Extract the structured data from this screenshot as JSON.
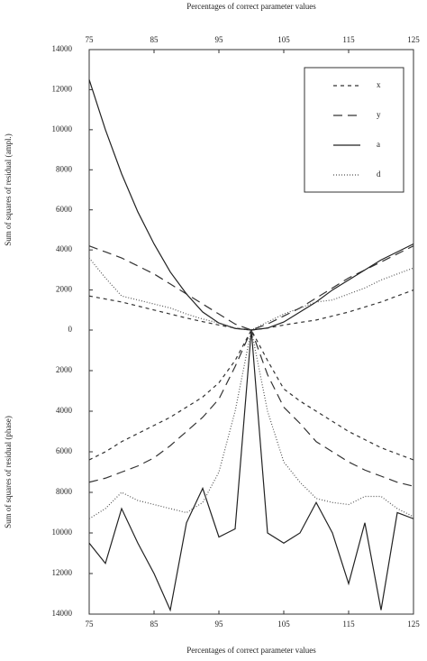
{
  "chart_data": [
    {
      "type": "line",
      "x_label": "Percentages of correct parameter values",
      "y_label": "Sum of squares of residual (ampl.)",
      "x_axis_side": "top",
      "x": [
        75,
        77.5,
        80,
        82.5,
        85,
        87.5,
        90,
        92.5,
        95,
        97.5,
        100,
        102.5,
        105,
        107.5,
        110,
        112.5,
        115,
        117.5,
        120,
        122.5,
        125
      ],
      "xlim": [
        75,
        125
      ],
      "xticks": [
        75,
        85,
        95,
        105,
        115,
        125
      ],
      "ylim": [
        0,
        14000
      ],
      "yticks": [
        0,
        2000,
        4000,
        6000,
        8000,
        10000,
        12000,
        14000
      ],
      "legend": "upper right",
      "series": [
        {
          "name": "x",
          "color": "#333333",
          "dash": "4,4",
          "values": [
            1700,
            1550,
            1400,
            1200,
            1000,
            800,
            600,
            420,
            250,
            100,
            0,
            100,
            250,
            380,
            500,
            700,
            900,
            1150,
            1400,
            1700,
            2000
          ]
        },
        {
          "name": "y",
          "color": "#333333",
          "dash": "10,6",
          "values": [
            4200,
            3900,
            3600,
            3200,
            2800,
            2300,
            1800,
            1300,
            800,
            300,
            0,
            300,
            700,
            1100,
            1600,
            2100,
            2600,
            3000,
            3400,
            3800,
            4200
          ]
        },
        {
          "name": "a",
          "color": "#222222",
          "dash": "none",
          "values": [
            12500,
            10000,
            7800,
            5900,
            4300,
            2900,
            1800,
            900,
            350,
            80,
            0,
            100,
            400,
            900,
            1400,
            2000,
            2500,
            3000,
            3500,
            3900,
            4300
          ]
        },
        {
          "name": "d",
          "color": "#555555",
          "dash": "1,2",
          "values": [
            3600,
            2600,
            1700,
            1500,
            1300,
            1100,
            800,
            550,
            350,
            100,
            0,
            400,
            800,
            1100,
            1400,
            1500,
            1800,
            2100,
            2500,
            2800,
            3100
          ]
        }
      ]
    },
    {
      "type": "line",
      "x_label": "Percentages of correct parameter values",
      "y_label": "Sum of squares of residual (phase)",
      "x_axis_side": "bottom",
      "inverted_y": true,
      "x": [
        75,
        77.5,
        80,
        82.5,
        85,
        87.5,
        90,
        92.5,
        95,
        97.5,
        100,
        102.5,
        105,
        107.5,
        110,
        112.5,
        115,
        117.5,
        120,
        122.5,
        125
      ],
      "xlim": [
        75,
        125
      ],
      "xticks": [
        75,
        85,
        95,
        105,
        115,
        125
      ],
      "ylim": [
        0,
        14000
      ],
      "yticks": [
        2000,
        4000,
        6000,
        8000,
        10000,
        12000,
        14000
      ],
      "series": [
        {
          "name": "x",
          "color": "#333333",
          "dash": "4,4",
          "values": [
            6400,
            6000,
            5500,
            5100,
            4700,
            4300,
            3800,
            3300,
            2600,
            1500,
            0,
            1500,
            2900,
            3500,
            4000,
            4500,
            5000,
            5400,
            5800,
            6100,
            6400
          ]
        },
        {
          "name": "y",
          "color": "#333333",
          "dash": "10,6",
          "values": [
            7500,
            7300,
            7000,
            6700,
            6300,
            5700,
            5000,
            4300,
            3400,
            1800,
            0,
            2200,
            3800,
            4600,
            5500,
            6000,
            6500,
            6900,
            7200,
            7500,
            7700
          ]
        },
        {
          "name": "a",
          "color": "#222222",
          "dash": "none",
          "values": [
            10500,
            11500,
            8800,
            10500,
            12000,
            13800,
            9500,
            7800,
            10200,
            9800,
            0,
            10000,
            10500,
            10000,
            8500,
            10000,
            12500,
            9500,
            13800,
            9000,
            9300
          ]
        },
        {
          "name": "d",
          "color": "#555555",
          "dash": "1,2",
          "values": [
            9300,
            8800,
            8000,
            8400,
            8600,
            8800,
            9000,
            8500,
            7000,
            4000,
            0,
            4000,
            6500,
            7500,
            8300,
            8500,
            8600,
            8200,
            8200,
            8800,
            9200
          ]
        }
      ]
    }
  ]
}
